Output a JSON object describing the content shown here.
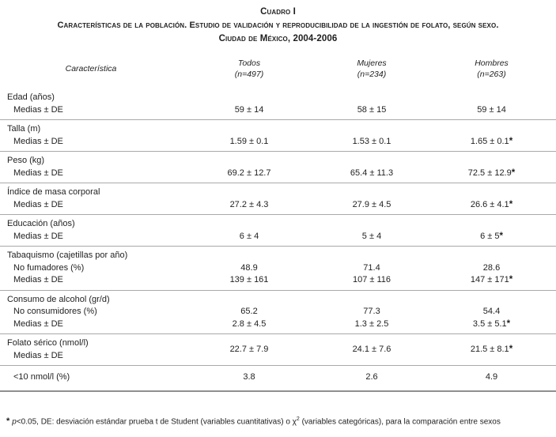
{
  "title": {
    "line1": "Cuadro I",
    "line2": "Características de la población. Estudio de validación y reproducibilidad de la ingestión de folato, según sexo.",
    "line3": "Ciudad de México, 2004-2006"
  },
  "table": {
    "header": {
      "characteristic": "Característica",
      "columns": [
        {
          "label": "Todos",
          "n": "(n=497)"
        },
        {
          "label": "Mujeres",
          "n": "(n=234)"
        },
        {
          "label": "Hombres",
          "n": "(n=263)"
        }
      ]
    },
    "sections": [
      {
        "rows": [
          {
            "label": "Edad (años)",
            "indent": false
          },
          {
            "label": "Medias ± DE",
            "indent": true,
            "values": [
              "59 ± 14",
              "58 ± 15",
              "59 ± 14"
            ]
          }
        ]
      },
      {
        "rows": [
          {
            "label": "Talla (m)",
            "indent": false
          },
          {
            "label": "Medias ± DE",
            "indent": true,
            "values": [
              "1.59 ± 0.1",
              "1.53 ± 0.1",
              "1.65 ± 0.1*"
            ]
          }
        ]
      },
      {
        "rows": [
          {
            "label": "Peso (kg)",
            "indent": false
          },
          {
            "label": "Medias ± DE",
            "indent": true,
            "values": [
              "69.2 ± 12.7",
              "65.4 ± 11.3",
              "72.5 ± 12.9*"
            ]
          }
        ]
      },
      {
        "rows": [
          {
            "label": "Índice de masa corporal",
            "indent": false
          },
          {
            "label": "Medias ± DE",
            "indent": true,
            "values": [
              "27.2 ± 4.3",
              "27.9 ± 4.5",
              "26.6 ± 4.1*"
            ]
          }
        ]
      },
      {
        "rows": [
          {
            "label": "Educación (años)",
            "indent": false
          },
          {
            "label": "Medias ± DE",
            "indent": true,
            "values": [
              "6 ± 4",
              "5 ± 4",
              "6 ± 5*"
            ]
          }
        ]
      },
      {
        "rows": [
          {
            "label": "Tabaquismo (cajetillas por año)",
            "indent": false
          },
          {
            "label": "No fumadores (%)",
            "indent": true,
            "values": [
              "48.9",
              "71.4",
              "28.6"
            ]
          },
          {
            "label": "Medias ± DE",
            "indent": true,
            "values": [
              "139 ± 161",
              "107 ± 116",
              "147 ± 171*"
            ]
          }
        ]
      },
      {
        "rows": [
          {
            "label": "Consumo de alcohol (gr/d)",
            "indent": false
          },
          {
            "label": "No consumidores (%)",
            "indent": true,
            "values": [
              "65.2",
              "77.3",
              "54.4"
            ]
          },
          {
            "label": "Medias ± DE",
            "indent": true,
            "values": [
              "2.8 ± 4.5",
              "1.3 ± 2.5",
              "3.5 ± 5.1*"
            ]
          }
        ]
      },
      {
        "rows": [
          {
            "label": "Folato sérico (nmol/l)",
            "indent": false
          },
          {
            "label": "Medias ± DE",
            "indent": true
          }
        ],
        "centered_values": [
          "22.7 ± 7.9",
          "24.1 ± 7.6",
          "21.5 ± 8.1*"
        ]
      },
      {
        "rows": [
          {
            "label": "<10 nmol/l (%)",
            "indent": true,
            "values": [
              "3.8",
              "2.6",
              "4.9"
            ]
          }
        ]
      }
    ]
  },
  "footnote": {
    "marker": "*",
    "p": "p",
    "part1": "<0.05, DE: desviación estándar prueba t de Student (variables cuantitativas) o ",
    "chi": "χ",
    "chi_sup": "2",
    "part2": " (variables categóricas), para la comparación entre sexos"
  }
}
